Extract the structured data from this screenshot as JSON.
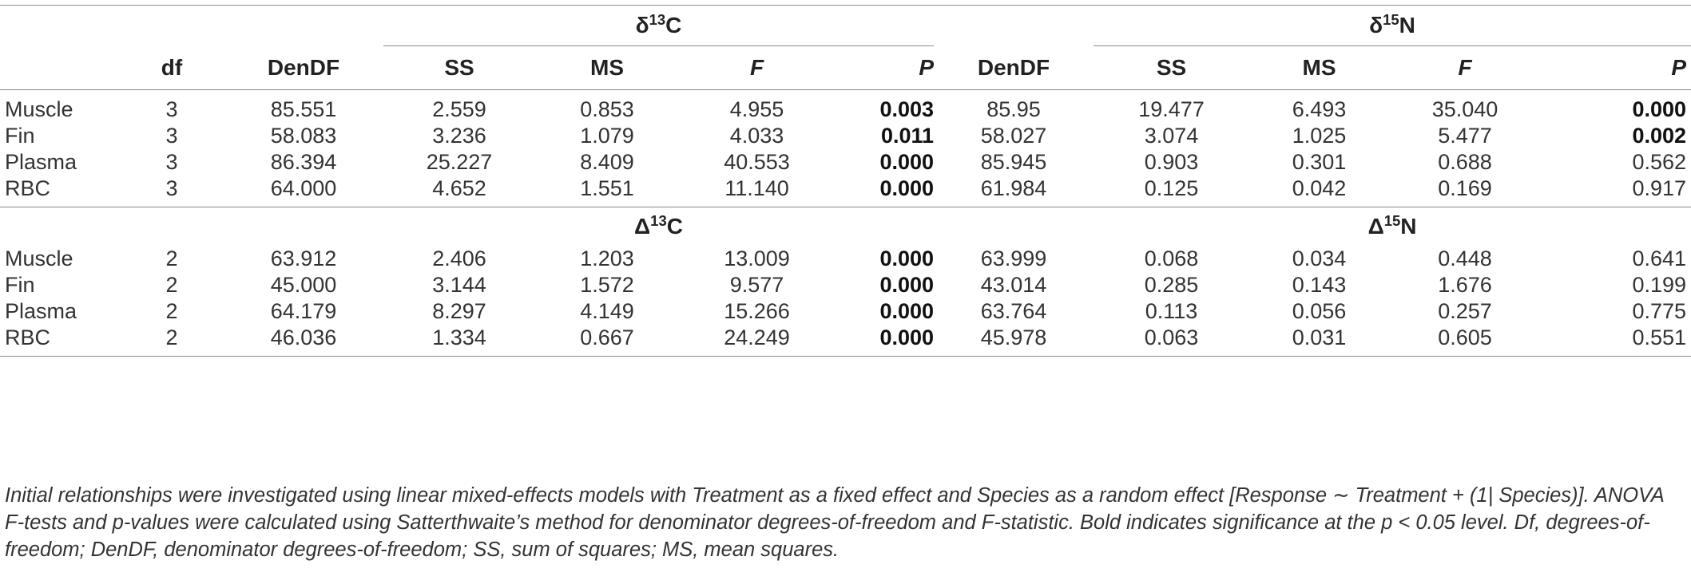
{
  "groups": {
    "d13c_base": "δ",
    "d13c_sup": "13",
    "d13c_el": "C",
    "d15n_base": "δ",
    "d15n_sup": "15",
    "d15n_el": "N",
    "D13c_base": "Δ",
    "D13c_sup": "13",
    "D13c_el": "C",
    "D15n_base": "Δ",
    "D15n_sup": "15",
    "D15n_el": "N"
  },
  "columns": {
    "df": "df",
    "dendf_c": "DenDF",
    "ss_c": "SS",
    "ms_c": "MS",
    "f_c": "F",
    "p_c": "P",
    "dendf_n": "DenDF",
    "ss_n": "SS",
    "ms_n": "MS",
    "f_n": "F",
    "p_n": "P"
  },
  "section1": {
    "rows": [
      {
        "label": "Muscle",
        "df": "3",
        "dendf_c": "85.551",
        "ss_c": "2.559",
        "ms_c": "0.853",
        "f_c": "4.955",
        "p_c": "0.003",
        "dendf_n": "85.95",
        "ss_n": "19.477",
        "ms_n": "6.493",
        "f_n": "35.040",
        "p_n": "0.000"
      },
      {
        "label": "Fin",
        "df": "3",
        "dendf_c": "58.083",
        "ss_c": "3.236",
        "ms_c": "1.079",
        "f_c": "4.033",
        "p_c": "0.011",
        "dendf_n": "58.027",
        "ss_n": "3.074",
        "ms_n": "1.025",
        "f_n": "5.477",
        "p_n": "0.002"
      },
      {
        "label": "Plasma",
        "df": "3",
        "dendf_c": "86.394",
        "ss_c": "25.227",
        "ms_c": "8.409",
        "f_c": "40.553",
        "p_c": "0.000",
        "dendf_n": "85.945",
        "ss_n": "0.903",
        "ms_n": "0.301",
        "f_n": "0.688",
        "p_n": "0.562"
      },
      {
        "label": "RBC",
        "df": "3",
        "dendf_c": "64.000",
        "ss_c": "4.652",
        "ms_c": "1.551",
        "f_c": "11.140",
        "p_c": "0.000",
        "dendf_n": "61.984",
        "ss_n": "0.125",
        "ms_n": "0.042",
        "f_n": "0.169",
        "p_n": "0.917"
      }
    ]
  },
  "section2": {
    "rows": [
      {
        "label": "Muscle",
        "df": "2",
        "dendf_c": "63.912",
        "ss_c": "2.406",
        "ms_c": "1.203",
        "f_c": "13.009",
        "p_c": "0.000",
        "dendf_n": "63.999",
        "ss_n": "0.068",
        "ms_n": "0.034",
        "f_n": "0.448",
        "p_n": "0.641"
      },
      {
        "label": "Fin",
        "df": "2",
        "dendf_c": "45.000",
        "ss_c": "3.144",
        "ms_c": "1.572",
        "f_c": "9.577",
        "p_c": "0.000",
        "dendf_n": "43.014",
        "ss_n": "0.285",
        "ms_n": "0.143",
        "f_n": "1.676",
        "p_n": "0.199"
      },
      {
        "label": "Plasma",
        "df": "2",
        "dendf_c": "64.179",
        "ss_c": "8.297",
        "ms_c": "4.149",
        "f_c": "15.266",
        "p_c": "0.000",
        "dendf_n": "63.764",
        "ss_n": "0.113",
        "ms_n": "0.056",
        "f_n": "0.257",
        "p_n": "0.775"
      },
      {
        "label": "RBC",
        "df": "2",
        "dendf_c": "46.036",
        "ss_c": "1.334",
        "ms_c": "0.667",
        "f_c": "24.249",
        "p_c": "0.000",
        "dendf_n": "45.978",
        "ss_n": "0.063",
        "ms_n": "0.031",
        "f_n": "0.605",
        "p_n": "0.551"
      }
    ]
  },
  "footnote": "Initial relationships were investigated using linear mixed-effects models with Treatment as a fixed effect and Species as a random effect [Response ∼ Treatment + (1| Species)]. ANOVA F-tests and p-values were calculated using Satterthwaite’s method for denominator degrees-of-freedom and F-statistic. Bold indicates significance at the p < 0.05 level. Df, degrees-of-freedom; DenDF, denominator degrees-of-freedom; SS, sum of squares; MS, mean squares."
}
